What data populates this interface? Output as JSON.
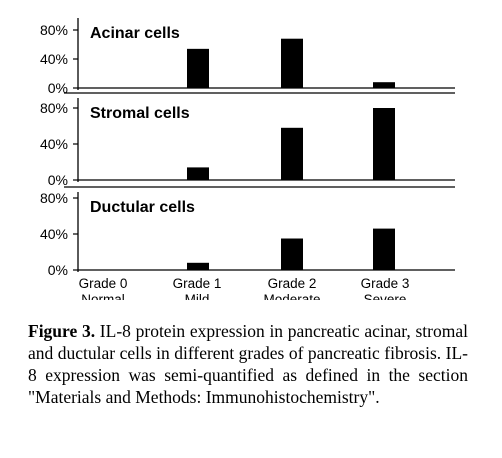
{
  "chart_data": {
    "type": "bar",
    "categories": [
      {
        "line1": "Grade 0",
        "line2": "Normal"
      },
      {
        "line1": "Grade 1",
        "line2": "Mild"
      },
      {
        "line1": "Grade 2",
        "line2": "Moderate"
      },
      {
        "line1": "Grade 3",
        "line2": "Severe"
      }
    ],
    "yticks": [
      "0%",
      "40%",
      "80%"
    ],
    "ylim": [
      0,
      80
    ],
    "bar_color": "#000000",
    "panels": [
      {
        "title": "Acinar cells",
        "values": [
          0,
          54,
          68,
          8
        ]
      },
      {
        "title": "Stromal cells",
        "values": [
          0,
          14,
          58,
          80
        ]
      },
      {
        "title": "Ductular cells",
        "values": [
          0,
          8,
          35,
          46
        ]
      }
    ]
  },
  "caption": {
    "label": "Figure 3.",
    "text": " IL-8 protein expression in pancreatic acinar, stromal and ductular cells in different grades of pancreatic fibrosis. IL-8 expression was semi-quantified as defined in the section \"Materials and Methods: Immunohistochemistry\"."
  }
}
